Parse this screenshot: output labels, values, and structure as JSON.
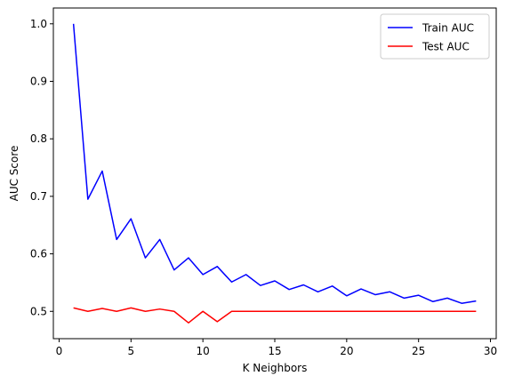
{
  "chart_data": {
    "type": "line",
    "title": "",
    "xlabel": "K Neighbors",
    "ylabel": "AUC Score",
    "xlim": [
      -0.4,
      30.4
    ],
    "ylim": [
      0.4525,
      1.0275
    ],
    "xticks": [
      0,
      5,
      10,
      15,
      20,
      25,
      30
    ],
    "yticks": [
      0.5,
      0.6,
      0.7,
      0.8,
      0.9,
      1.0
    ],
    "ytick_labels": [
      "0.5",
      "0.6",
      "0.7",
      "0.8",
      "0.9",
      "1.0"
    ],
    "grid": false,
    "legend_position": "top-right",
    "x": [
      1,
      2,
      3,
      4,
      5,
      6,
      7,
      8,
      9,
      10,
      11,
      12,
      13,
      14,
      15,
      16,
      17,
      18,
      19,
      20,
      21,
      22,
      23,
      24,
      25,
      26,
      27,
      28,
      29
    ],
    "series": [
      {
        "name": "Train AUC",
        "color": "#0000ff",
        "values": [
          1.0,
          0.695,
          0.744,
          0.625,
          0.661,
          0.593,
          0.625,
          0.572,
          0.593,
          0.564,
          0.578,
          0.551,
          0.564,
          0.545,
          0.553,
          0.538,
          0.546,
          0.534,
          0.544,
          0.527,
          0.539,
          0.529,
          0.534,
          0.523,
          0.528,
          0.517,
          0.523,
          0.514,
          0.518
        ]
      },
      {
        "name": "Test AUC",
        "color": "#ff0000",
        "values": [
          0.506,
          0.5,
          0.505,
          0.5,
          0.506,
          0.5,
          0.504,
          0.5,
          0.48,
          0.5,
          0.482,
          0.5,
          0.5,
          0.5,
          0.5,
          0.5,
          0.5,
          0.5,
          0.5,
          0.5,
          0.5,
          0.5,
          0.5,
          0.5,
          0.5,
          0.5,
          0.5,
          0.5,
          0.5
        ]
      }
    ]
  }
}
